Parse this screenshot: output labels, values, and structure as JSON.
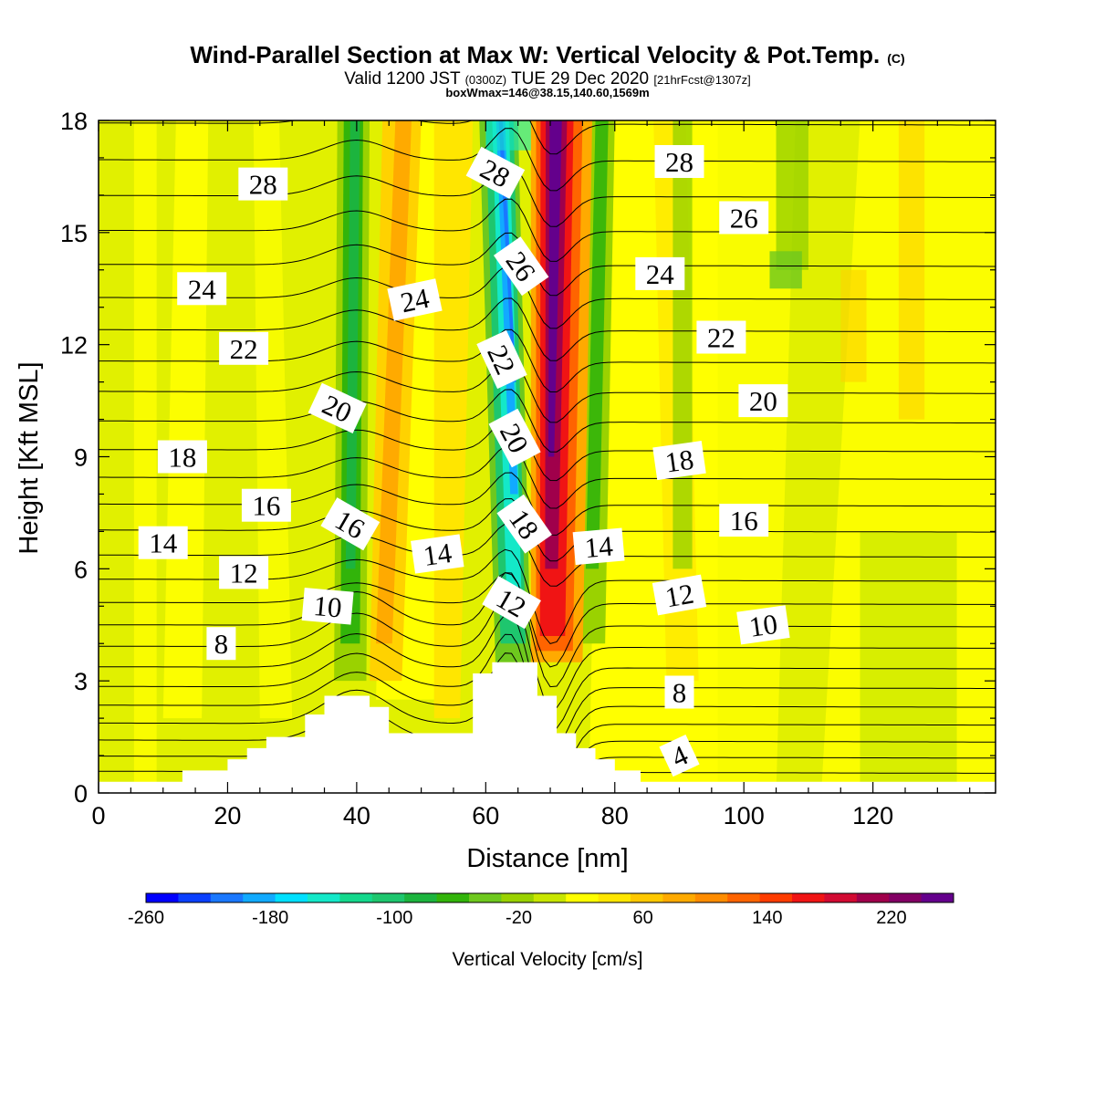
{
  "figure": {
    "title_main": "Wind-Parallel Section at Max W: Vertical Velocity & Pot.Temp.",
    "title_copyright": "(C)",
    "subtitle_prefix": "Valid 1200 JST",
    "subtitle_utc": "(0300Z)",
    "subtitle_date": "TUE 29 Dec 2020",
    "subtitle_fcst": "[21hrFcst@1307z]",
    "subtitle_box": "boxWmax=146@38.15,140.60,1569m"
  },
  "chart_data": {
    "type": "heatmap",
    "xlabel": "Distance [nm]",
    "ylabel": "Height [Kft MSL]",
    "xlim": [
      0,
      139
    ],
    "ylim": [
      0,
      18
    ],
    "x_ticks": [
      0,
      20,
      40,
      60,
      80,
      100,
      120
    ],
    "y_ticks": [
      0,
      3,
      6,
      9,
      12,
      15,
      18
    ],
    "colorbar": {
      "label": "Vertical Velocity [cm/s]",
      "range": [
        -260,
        260
      ],
      "ticks": [
        -260,
        -180,
        -100,
        -20,
        60,
        140,
        220
      ],
      "colors": [
        "#0000ff",
        "#0a40ff",
        "#1a78ff",
        "#11aaff",
        "#00e0ff",
        "#14e8c8",
        "#14d88c",
        "#1ec66e",
        "#1cb43e",
        "#32b40a",
        "#6ec81e",
        "#9ad200",
        "#c8e600",
        "#ffff00",
        "#ffe600",
        "#ffc800",
        "#ffaa00",
        "#ff8c00",
        "#ff6400",
        "#ff3c00",
        "#f01414",
        "#d20a32",
        "#a0004b",
        "#820064",
        "#64008c"
      ]
    },
    "terrain_kft": [
      [
        0,
        0.3
      ],
      [
        13,
        0.3
      ],
      [
        13,
        0.6
      ],
      [
        20,
        0.6
      ],
      [
        20,
        0.9
      ],
      [
        23,
        0.9
      ],
      [
        23,
        1.2
      ],
      [
        26,
        1.2
      ],
      [
        26,
        1.5
      ],
      [
        32,
        1.5
      ],
      [
        32,
        2.1
      ],
      [
        35,
        2.1
      ],
      [
        35,
        2.6
      ],
      [
        42,
        2.6
      ],
      [
        42,
        2.3
      ],
      [
        45,
        2.3
      ],
      [
        45,
        1.6
      ],
      [
        58,
        1.6
      ],
      [
        58,
        3.2
      ],
      [
        61,
        3.2
      ],
      [
        61,
        3.5
      ],
      [
        68,
        3.5
      ],
      [
        68,
        2.6
      ],
      [
        71,
        2.6
      ],
      [
        71,
        1.6
      ],
      [
        74,
        1.6
      ],
      [
        74,
        1.2
      ],
      [
        77,
        1.2
      ],
      [
        77,
        0.9
      ],
      [
        80,
        0.9
      ],
      [
        80,
        0.6
      ],
      [
        84,
        0.6
      ],
      [
        84,
        0.3
      ],
      [
        139,
        0.3
      ]
    ],
    "theta_contours": [
      2,
      4,
      6,
      8,
      10,
      12,
      14,
      16,
      18,
      20,
      22,
      24,
      26,
      28
    ],
    "contour_labels": [
      {
        "text": "28",
        "x": 25.5,
        "y": 16.3,
        "rot": 0
      },
      {
        "text": "28",
        "x": 61.5,
        "y": 16.6,
        "rot": 28
      },
      {
        "text": "28",
        "x": 90,
        "y": 16.9,
        "rot": 0
      },
      {
        "text": "26",
        "x": 100,
        "y": 15.4,
        "rot": 0
      },
      {
        "text": "26",
        "x": 65.5,
        "y": 14.1,
        "rot": 55
      },
      {
        "text": "24",
        "x": 16,
        "y": 13.5,
        "rot": 0
      },
      {
        "text": "24",
        "x": 49,
        "y": 13.2,
        "rot": -12
      },
      {
        "text": "24",
        "x": 87,
        "y": 13.9,
        "rot": 0
      },
      {
        "text": "22",
        "x": 22.5,
        "y": 11.9,
        "rot": 0
      },
      {
        "text": "22",
        "x": 62.5,
        "y": 11.6,
        "rot": 65
      },
      {
        "text": "22",
        "x": 96.5,
        "y": 12.2,
        "rot": 0
      },
      {
        "text": "20",
        "x": 37,
        "y": 10.3,
        "rot": 25
      },
      {
        "text": "20",
        "x": 64.5,
        "y": 9.5,
        "rot": 62
      },
      {
        "text": "20",
        "x": 103,
        "y": 10.5,
        "rot": 0
      },
      {
        "text": "18",
        "x": 13,
        "y": 9.0,
        "rot": 0
      },
      {
        "text": "18",
        "x": 90,
        "y": 8.9,
        "rot": -8
      },
      {
        "text": "18",
        "x": 66,
        "y": 7.2,
        "rot": 55
      },
      {
        "text": "16",
        "x": 26,
        "y": 7.7,
        "rot": 0
      },
      {
        "text": "16",
        "x": 39,
        "y": 7.2,
        "rot": 30
      },
      {
        "text": "16",
        "x": 100,
        "y": 7.3,
        "rot": 0
      },
      {
        "text": "14",
        "x": 10,
        "y": 6.7,
        "rot": 0
      },
      {
        "text": "14",
        "x": 52.5,
        "y": 6.4,
        "rot": -8
      },
      {
        "text": "14",
        "x": 77.5,
        "y": 6.6,
        "rot": -5
      },
      {
        "text": "12",
        "x": 22.5,
        "y": 5.9,
        "rot": 0
      },
      {
        "text": "12",
        "x": 64,
        "y": 5.1,
        "rot": 30
      },
      {
        "text": "12",
        "x": 90,
        "y": 5.3,
        "rot": -10
      },
      {
        "text": "10",
        "x": 35.5,
        "y": 5.0,
        "rot": 5
      },
      {
        "text": "10",
        "x": 103,
        "y": 4.5,
        "rot": -8
      },
      {
        "text": "8",
        "x": 19,
        "y": 4.0,
        "rot": 0
      },
      {
        "text": "8",
        "x": 90,
        "y": 2.7,
        "rot": 0
      },
      {
        "text": "4",
        "x": 90,
        "y": 1.0,
        "rot": -25
      }
    ]
  }
}
